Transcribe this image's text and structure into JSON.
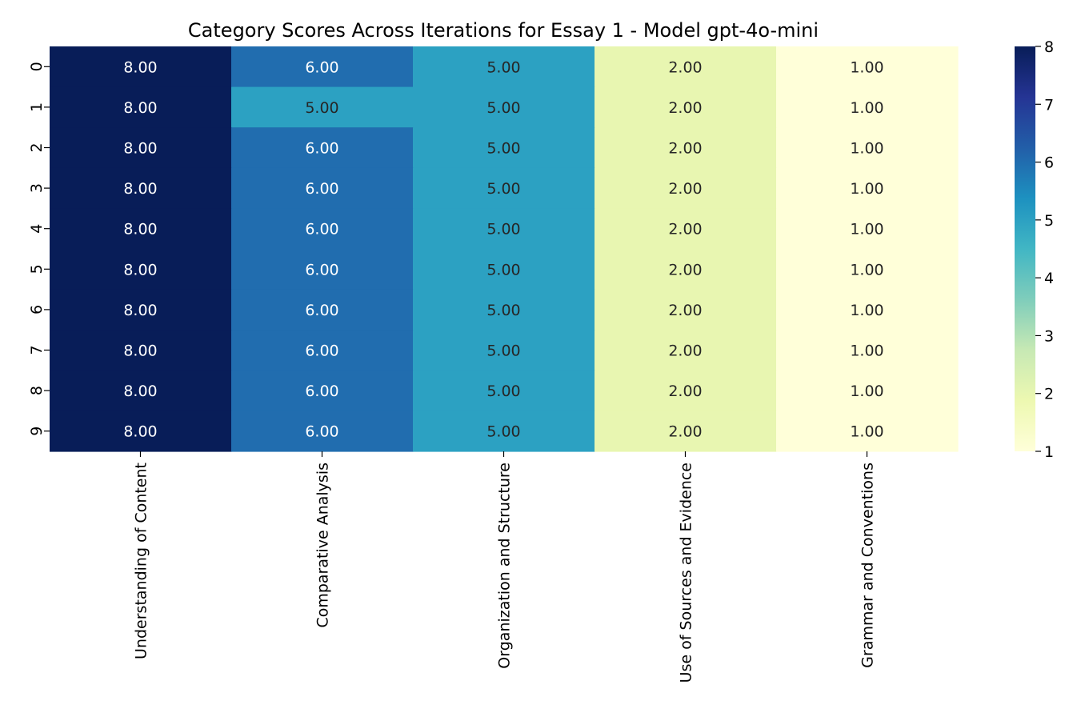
{
  "chart_data": {
    "type": "heatmap",
    "title": "Category Scores Across Iterations for Essay 1 - Model gpt-4o-mini",
    "xlabel": "",
    "ylabel": "",
    "columns": [
      "Understanding of Content",
      "Comparative Analysis",
      "Organization and Structure",
      "Use of Sources and Evidence",
      "Grammar and Conventions"
    ],
    "rows": [
      "0",
      "1",
      "2",
      "3",
      "4",
      "5",
      "6",
      "7",
      "8",
      "9"
    ],
    "values": [
      [
        8,
        6,
        5,
        2,
        1
      ],
      [
        8,
        5,
        5,
        2,
        1
      ],
      [
        8,
        6,
        5,
        2,
        1
      ],
      [
        8,
        6,
        5,
        2,
        1
      ],
      [
        8,
        6,
        5,
        2,
        1
      ],
      [
        8,
        6,
        5,
        2,
        1
      ],
      [
        8,
        6,
        5,
        2,
        1
      ],
      [
        8,
        6,
        5,
        2,
        1
      ],
      [
        8,
        6,
        5,
        2,
        1
      ],
      [
        8,
        6,
        5,
        2,
        1
      ]
    ],
    "annotation_format": "0.00",
    "colormap": "YlGnBu",
    "colorbar": {
      "min": 1,
      "max": 8,
      "ticks": [
        "1",
        "2",
        "3",
        "4",
        "5",
        "6",
        "7",
        "8"
      ],
      "stops": [
        "#ffffd9",
        "#edf8b1",
        "#c7e9b4",
        "#7fcdbb",
        "#41b6c4",
        "#1d91c0",
        "#225ea8",
        "#253494",
        "#081d58"
      ]
    }
  }
}
